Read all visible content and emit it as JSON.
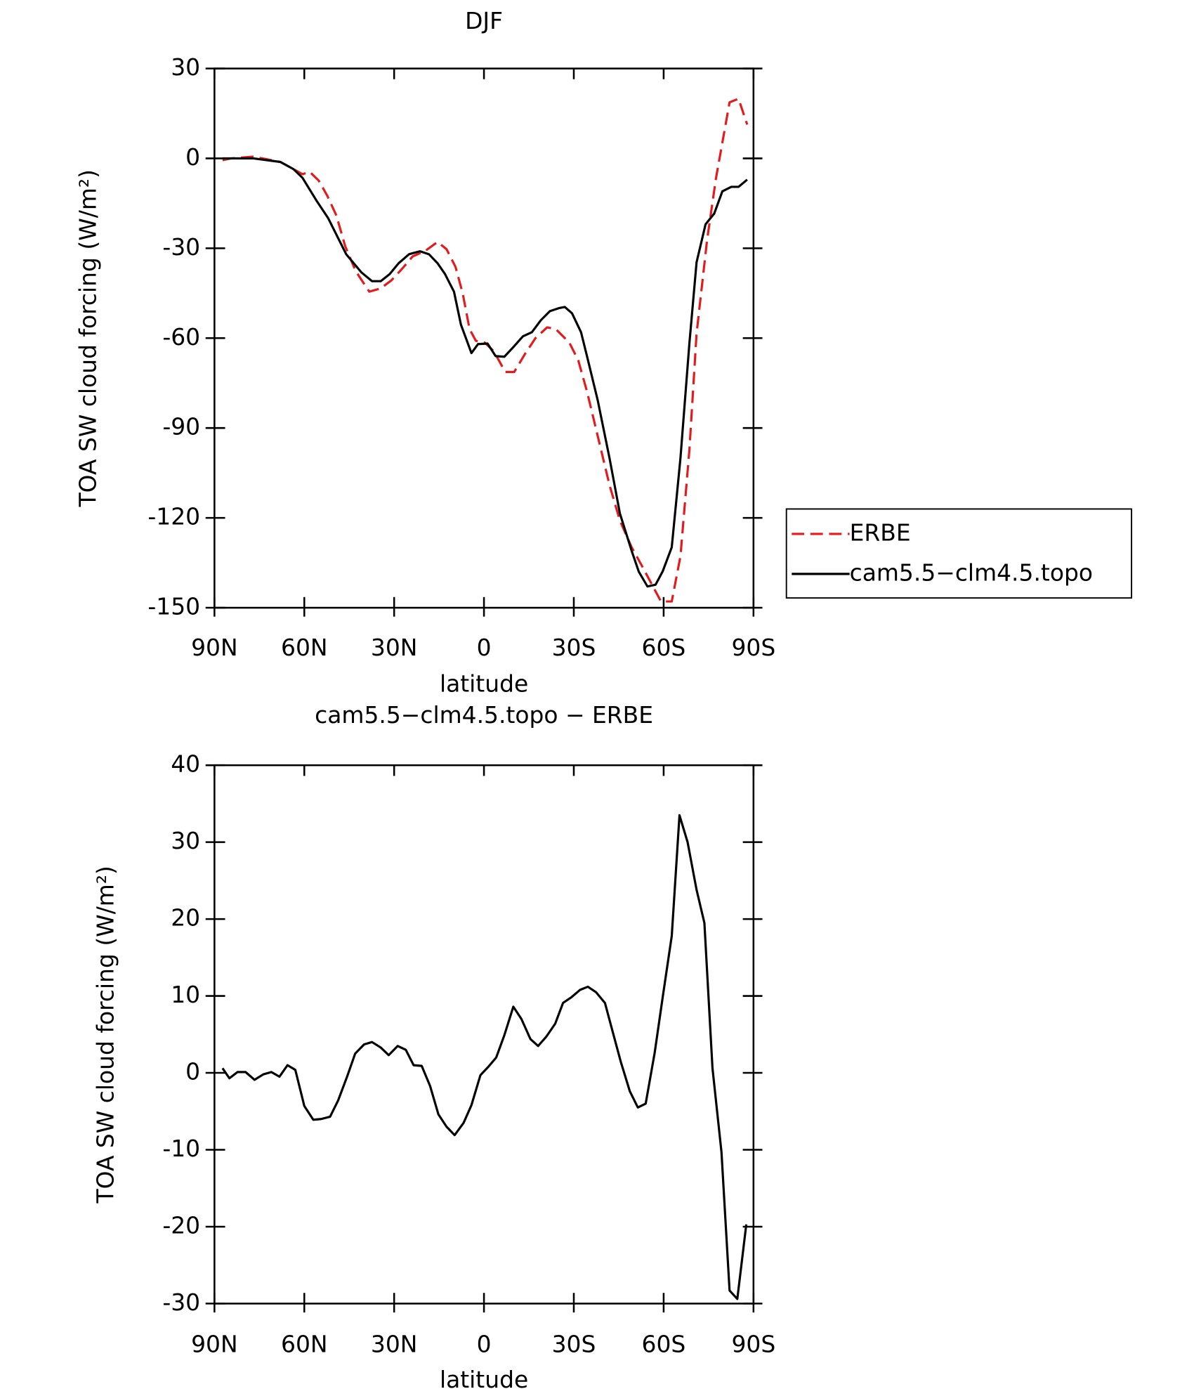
{
  "chart_data": [
    {
      "type": "line",
      "title": "DJF",
      "xlabel": "latitude",
      "ylabel": "TOA SW cloud forcing (W/m²)",
      "xlim": [
        90,
        -90
      ],
      "xticks": [
        {
          "value": 90,
          "label": "90N"
        },
        {
          "value": 60,
          "label": "60N"
        },
        {
          "value": 30,
          "label": "30N"
        },
        0,
        {
          "value": -30,
          "label": "30S"
        },
        {
          "value": -60,
          "label": "60S"
        },
        {
          "value": -90,
          "label": "90S"
        }
      ],
      "ylim": [
        -150,
        30
      ],
      "yticks": [
        30,
        0,
        -30,
        -60,
        -90,
        -120,
        -150
      ],
      "legend": "right",
      "series": [
        {
          "name": "ERBE",
          "color": "#e41a1c",
          "style": "dashed",
          "x": [
            87.3,
            84.4,
            77,
            72.5,
            68,
            63.6,
            60.6,
            58.2,
            55.2,
            52.3,
            49.3,
            46.3,
            42.8,
            38.3,
            34.5,
            30.9,
            27.3,
            23.8,
            19.6,
            15.5,
            12.5,
            9.5,
            7.1,
            4.8,
            2.7,
            -0.3,
            -3.3,
            -7.1,
            -10.1,
            -13.7,
            -17.2,
            -21.1,
            -24,
            -28.5,
            -31.5,
            -34.4,
            -38,
            -41.9,
            -45.4,
            -49.3,
            -52.9,
            -56.1,
            -59.1,
            -62.7,
            -65.6,
            -68.6,
            -71,
            -74.5,
            -77.5,
            -82,
            -85,
            -87.9
          ],
          "values": [
            -0.6,
            0,
            0.6,
            -0.3,
            -1.2,
            -3.6,
            -5.3,
            -4.5,
            -7.4,
            -12.5,
            -19,
            -29.4,
            -37.7,
            -44.5,
            -43.4,
            -40.7,
            -36.8,
            -32.7,
            -30.9,
            -27.9,
            -30.3,
            -36.2,
            -45.1,
            -57,
            -60.9,
            -61.5,
            -64.4,
            -71.3,
            -71.3,
            -65.3,
            -60,
            -56.4,
            -57,
            -61.5,
            -67.4,
            -77.8,
            -92.7,
            -109,
            -120.9,
            -129.8,
            -136.3,
            -142.3,
            -147.9,
            -147.9,
            -132.8,
            -97.1,
            -58.5,
            -27.3,
            -6.5,
            18.7,
            19.9,
            11.3
          ]
        },
        {
          "name": "cam5.5−clm4.5.topo",
          "color": "#000000",
          "style": "solid",
          "x": [
            87.3,
            77,
            68,
            63.6,
            60.6,
            56,
            52,
            46,
            41,
            37.4,
            34.5,
            31.5,
            28.5,
            25,
            21.4,
            18.4,
            15.5,
            13,
            10,
            7.7,
            4.2,
            2,
            -1.2,
            -3.9,
            -6.8,
            -9.8,
            -13,
            -16,
            -19,
            -22,
            -25,
            -27,
            -29.4,
            -32.4,
            -34.4,
            -38,
            -41.9,
            -45.4,
            -49.3,
            -51.7,
            -54.6,
            -57.3,
            -59.7,
            -62.7,
            -65.6,
            -68.6,
            -71,
            -74,
            -76.9,
            -79.6,
            -82.6,
            -85,
            -87.9
          ],
          "values": [
            0,
            0,
            -1.2,
            -3.6,
            -6.5,
            -14,
            -20,
            -32,
            -38,
            -41,
            -41,
            -38.6,
            -35,
            -32,
            -31,
            -32,
            -35,
            -38.6,
            -44.5,
            -55.5,
            -65,
            -62,
            -61.8,
            -66,
            -66.2,
            -63,
            -59.4,
            -58,
            -54,
            -51,
            -50,
            -49.6,
            -51.7,
            -58,
            -66,
            -80.8,
            -100,
            -118.5,
            -131,
            -138,
            -142.9,
            -142.3,
            -137.8,
            -129.8,
            -100,
            -61.5,
            -34.7,
            -22,
            -18.4,
            -11,
            -9.5,
            -9.5,
            -7.1
          ]
        }
      ]
    },
    {
      "type": "line",
      "title": "cam5.5−clm4.5.topo − ERBE",
      "xlabel": "latitude",
      "ylabel": "TOA SW cloud forcing (W/m²)",
      "xlim": [
        90,
        -90
      ],
      "xticks": [
        {
          "value": 90,
          "label": "90N"
        },
        {
          "value": 60,
          "label": "60N"
        },
        {
          "value": 30,
          "label": "30N"
        },
        0,
        {
          "value": -30,
          "label": "30S"
        },
        {
          "value": -60,
          "label": "60S"
        },
        {
          "value": -90,
          "label": "90S"
        }
      ],
      "ylim": [
        -30,
        40
      ],
      "yticks": [
        40,
        30,
        20,
        10,
        0,
        -10,
        -20,
        -30
      ],
      "series": [
        {
          "color": "#000000",
          "style": "solid",
          "x": [
            87.3,
            85,
            82.3,
            79.6,
            76.6,
            73.7,
            71,
            68.3,
            65.6,
            63,
            60,
            57,
            54.4,
            51.4,
            48.7,
            45.7,
            43,
            40,
            37.4,
            34.5,
            31.8,
            28.8,
            26.1,
            23.5,
            20.8,
            18,
            15.2,
            12.5,
            9.8,
            6.8,
            4.2,
            1.2,
            -1.5,
            -4.1,
            -6.8,
            -9.8,
            -12.5,
            -15.5,
            -18.1,
            -20.8,
            -23.8,
            -26.4,
            -29.1,
            -32.1,
            -34.7,
            -37.4,
            -40.4,
            -43,
            -45.7,
            -48.7,
            -51.4,
            -54,
            -57,
            -59.7,
            -62.7,
            -65.3,
            -68,
            -71,
            -73.6,
            -76.3,
            -79.3,
            -82,
            -84.6,
            -87.6
          ],
          "values": [
            0.6,
            -0.7,
            0.1,
            0.1,
            -0.9,
            -0.2,
            0.1,
            -0.5,
            1,
            0.4,
            -4.3,
            -6.1,
            -6,
            -5.7,
            -3.6,
            -0.5,
            2.5,
            3.7,
            4,
            3.3,
            2.3,
            3.5,
            3,
            1,
            0.9,
            -1.7,
            -5.4,
            -7,
            -8.1,
            -6.5,
            -4.2,
            -0.3,
            0.8,
            2,
            4.9,
            8.6,
            7,
            4.4,
            3.5,
            4.7,
            6.4,
            9.1,
            9.8,
            10.8,
            11.2,
            10.5,
            9.1,
            5.3,
            1.4,
            -2.4,
            -4.5,
            -4,
            2.6,
            9.9,
            17.8,
            33.5,
            30,
            23.8,
            19.5,
            0.6,
            -10.3,
            -28.3,
            -29.4,
            -19.7
          ]
        }
      ]
    }
  ]
}
